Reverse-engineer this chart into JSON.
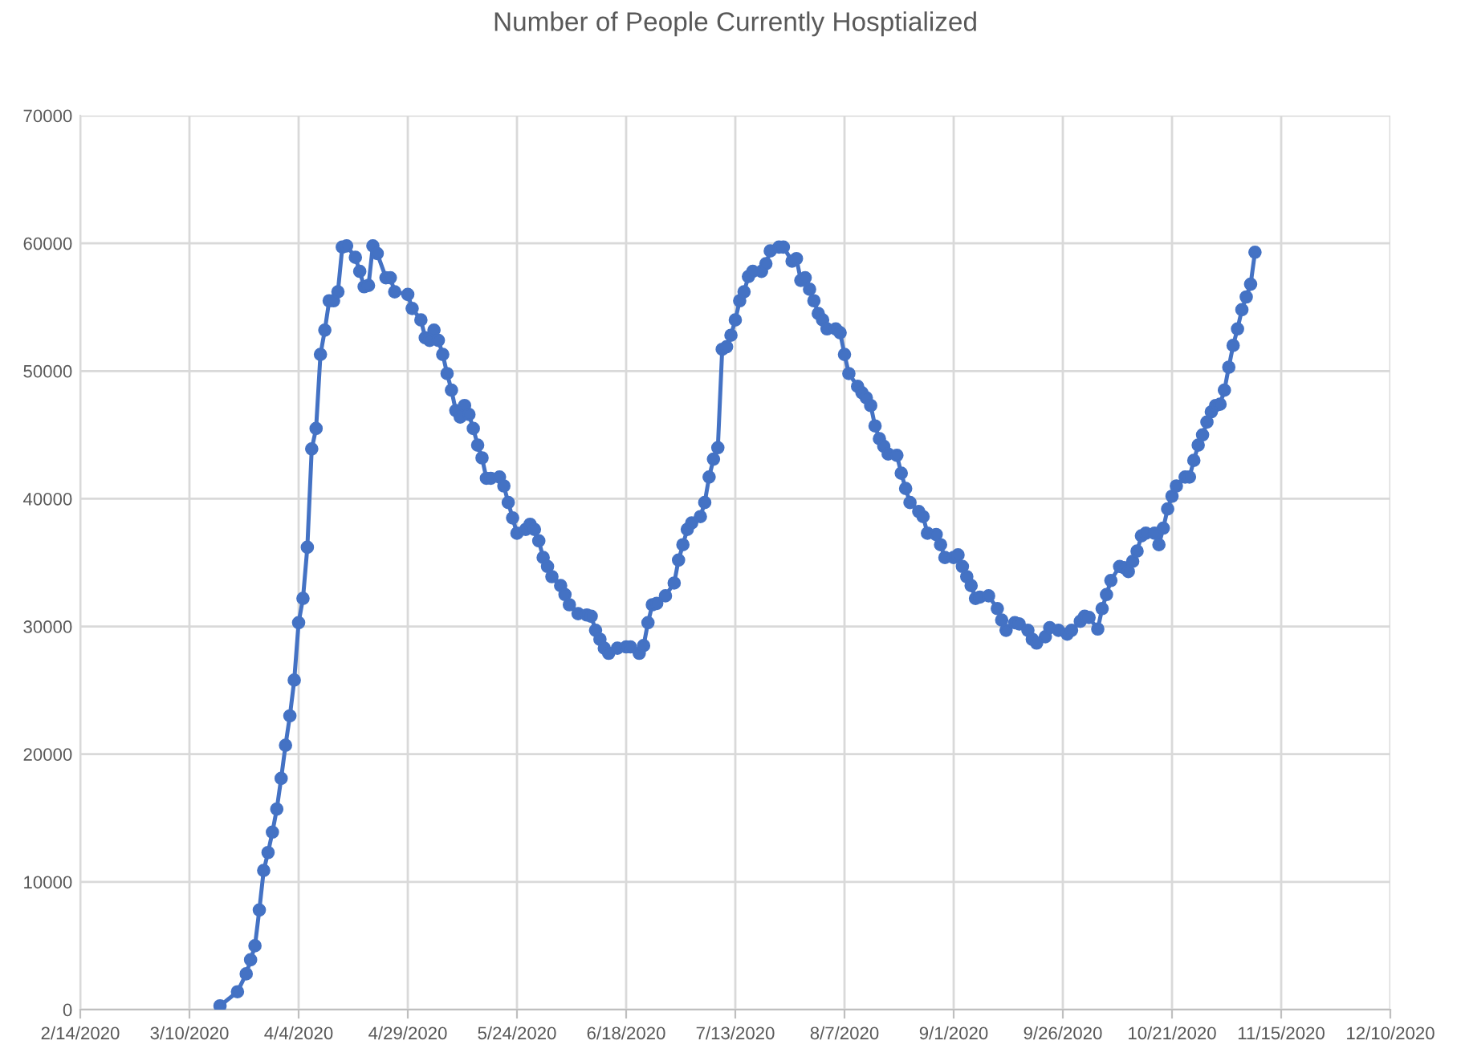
{
  "chart_data": {
    "type": "line",
    "title": "Number of People Currently Hosptialized",
    "x": [
      "2020-03-17",
      "2020-03-21",
      "2020-03-23",
      "2020-03-24",
      "2020-03-25",
      "2020-03-26",
      "2020-03-27",
      "2020-03-28",
      "2020-03-29",
      "2020-03-30",
      "2020-03-31",
      "2020-04-01",
      "2020-04-02",
      "2020-04-03",
      "2020-04-04",
      "2020-04-05",
      "2020-04-06",
      "2020-04-07",
      "2020-04-08",
      "2020-04-09",
      "2020-04-10",
      "2020-04-11",
      "2020-04-12",
      "2020-04-13",
      "2020-04-14",
      "2020-04-15",
      "2020-04-17",
      "2020-04-18",
      "2020-04-19",
      "2020-04-20",
      "2020-04-21",
      "2020-04-22",
      "2020-04-24",
      "2020-04-25",
      "2020-04-26",
      "2020-04-29",
      "2020-04-30",
      "2020-05-02",
      "2020-05-03",
      "2020-05-04",
      "2020-05-05",
      "2020-05-06",
      "2020-05-07",
      "2020-05-08",
      "2020-05-09",
      "2020-05-10",
      "2020-05-11",
      "2020-05-12",
      "2020-05-13",
      "2020-05-14",
      "2020-05-15",
      "2020-05-16",
      "2020-05-17",
      "2020-05-18",
      "2020-05-20",
      "2020-05-21",
      "2020-05-22",
      "2020-05-23",
      "2020-05-24",
      "2020-05-26",
      "2020-05-27",
      "2020-05-28",
      "2020-05-29",
      "2020-05-30",
      "2020-05-31",
      "2020-06-01",
      "2020-06-03",
      "2020-06-04",
      "2020-06-05",
      "2020-06-07",
      "2020-06-09",
      "2020-06-10",
      "2020-06-11",
      "2020-06-12",
      "2020-06-13",
      "2020-06-14",
      "2020-06-16",
      "2020-06-18",
      "2020-06-19",
      "2020-06-21",
      "2020-06-22",
      "2020-06-23",
      "2020-06-24",
      "2020-06-25",
      "2020-06-27",
      "2020-06-29",
      "2020-06-30",
      "2020-07-01",
      "2020-07-02",
      "2020-07-03",
      "2020-07-05",
      "2020-07-06",
      "2020-07-07",
      "2020-07-08",
      "2020-07-09",
      "2020-07-10",
      "2020-07-11",
      "2020-07-12",
      "2020-07-13",
      "2020-07-14",
      "2020-07-15",
      "2020-07-16",
      "2020-07-17",
      "2020-07-19",
      "2020-07-20",
      "2020-07-21",
      "2020-07-23",
      "2020-07-24",
      "2020-07-26",
      "2020-07-27",
      "2020-07-28",
      "2020-07-29",
      "2020-07-30",
      "2020-07-31",
      "2020-08-01",
      "2020-08-02",
      "2020-08-03",
      "2020-08-05",
      "2020-08-06",
      "2020-08-07",
      "2020-08-08",
      "2020-08-10",
      "2020-08-11",
      "2020-08-12",
      "2020-08-13",
      "2020-08-14",
      "2020-08-15",
      "2020-08-16",
      "2020-08-17",
      "2020-08-19",
      "2020-08-20",
      "2020-08-21",
      "2020-08-22",
      "2020-08-24",
      "2020-08-25",
      "2020-08-26",
      "2020-08-28",
      "2020-08-29",
      "2020-08-30",
      "2020-09-01",
      "2020-09-02",
      "2020-09-03",
      "2020-09-04",
      "2020-09-05",
      "2020-09-06",
      "2020-09-07",
      "2020-09-09",
      "2020-09-11",
      "2020-09-12",
      "2020-09-13",
      "2020-09-15",
      "2020-09-16",
      "2020-09-18",
      "2020-09-19",
      "2020-09-20",
      "2020-09-22",
      "2020-09-23",
      "2020-09-25",
      "2020-09-27",
      "2020-09-28",
      "2020-09-30",
      "2020-10-01",
      "2020-10-02",
      "2020-10-04",
      "2020-10-05",
      "2020-10-06",
      "2020-10-07",
      "2020-10-09",
      "2020-10-10",
      "2020-10-11",
      "2020-10-12",
      "2020-10-13",
      "2020-10-14",
      "2020-10-15",
      "2020-10-17",
      "2020-10-18",
      "2020-10-19",
      "2020-10-20",
      "2020-10-21",
      "2020-10-22",
      "2020-10-24",
      "2020-10-25",
      "2020-10-26",
      "2020-10-27",
      "2020-10-28",
      "2020-10-29",
      "2020-10-30",
      "2020-10-31",
      "2020-11-01",
      "2020-11-02",
      "2020-11-03",
      "2020-11-04",
      "2020-11-05",
      "2020-11-06",
      "2020-11-07",
      "2020-11-08",
      "2020-11-09"
    ],
    "series": [
      {
        "color": "#4472c4",
        "values": [
          300,
          1400,
          2800,
          3900,
          5000,
          7800,
          10900,
          12300,
          13900,
          15700,
          18100,
          20700,
          23000,
          25800,
          30300,
          32200,
          36200,
          43900,
          45500,
          51300,
          53200,
          55500,
          55500,
          56200,
          59700,
          59800,
          58900,
          57800,
          56600,
          56700,
          59800,
          59200,
          57300,
          57300,
          56200,
          56000,
          54900,
          54000,
          52600,
          52400,
          53200,
          52400,
          51300,
          49800,
          48500,
          46900,
          46400,
          47300,
          46600,
          45500,
          44200,
          43200,
          41600,
          41600,
          41700,
          41000,
          39700,
          38500,
          37300,
          37600,
          38000,
          37600,
          36700,
          35400,
          34700,
          33900,
          33200,
          32500,
          31700,
          31000,
          30900,
          30800,
          29700,
          29000,
          28300,
          27900,
          28300,
          28400,
          28400,
          27900,
          28500,
          30300,
          31700,
          31800,
          32400,
          33400,
          35200,
          36400,
          37600,
          38100,
          38600,
          39700,
          41700,
          43100,
          44000,
          51700,
          51900,
          52800,
          54000,
          55500,
          56200,
          57400,
          57800,
          57800,
          58400,
          59400,
          59700,
          59700,
          58600,
          58800,
          57100,
          57300,
          56400,
          55500,
          54500,
          54000,
          53300,
          53300,
          53000,
          51300,
          49800,
          48800,
          48300,
          47900,
          47300,
          45700,
          44700,
          44100,
          43500,
          43400,
          42000,
          40800,
          39700,
          39000,
          38600,
          37300,
          37200,
          36400,
          35400,
          35400,
          35600,
          34700,
          33900,
          33200,
          32200,
          32300,
          32400,
          31400,
          30500,
          29700,
          30300,
          30200,
          29700,
          29000,
          28700,
          29200,
          29900,
          29700,
          29400,
          29700,
          30400,
          30800,
          30700,
          29800,
          31400,
          32500,
          33600,
          34700,
          34600,
          34300,
          35100,
          35900,
          37100,
          37300,
          37300,
          36400,
          37700,
          39200,
          40200,
          41000,
          41700,
          41700,
          43000,
          44200,
          45000,
          46000,
          46800,
          47300,
          47400,
          48500,
          50300,
          52000,
          53300,
          54800,
          55800,
          56800,
          59300
        ]
      }
    ],
    "xlim": [
      "2020-02-14",
      "2020-12-10"
    ],
    "xticks": [
      {
        "value": "2020-02-14",
        "label": "2/14/2020"
      },
      {
        "value": "2020-03-10",
        "label": "3/10/2020"
      },
      {
        "value": "2020-04-04",
        "label": "4/4/2020"
      },
      {
        "value": "2020-04-29",
        "label": "4/29/2020"
      },
      {
        "value": "2020-05-24",
        "label": "5/24/2020"
      },
      {
        "value": "2020-06-18",
        "label": "6/18/2020"
      },
      {
        "value": "2020-07-13",
        "label": "7/13/2020"
      },
      {
        "value": "2020-08-07",
        "label": "8/7/2020"
      },
      {
        "value": "2020-09-01",
        "label": "9/1/2020"
      },
      {
        "value": "2020-09-26",
        "label": "9/26/2020"
      },
      {
        "value": "2020-10-21",
        "label": "10/21/2020"
      },
      {
        "value": "2020-11-15",
        "label": "11/15/2020"
      },
      {
        "value": "2020-12-10",
        "label": "12/10/2020"
      }
    ],
    "ylim": [
      0,
      70000
    ],
    "yticks": [
      0,
      10000,
      20000,
      30000,
      40000,
      50000,
      60000,
      70000
    ],
    "grid": true,
    "marker": "circle",
    "line_style": "solid"
  }
}
